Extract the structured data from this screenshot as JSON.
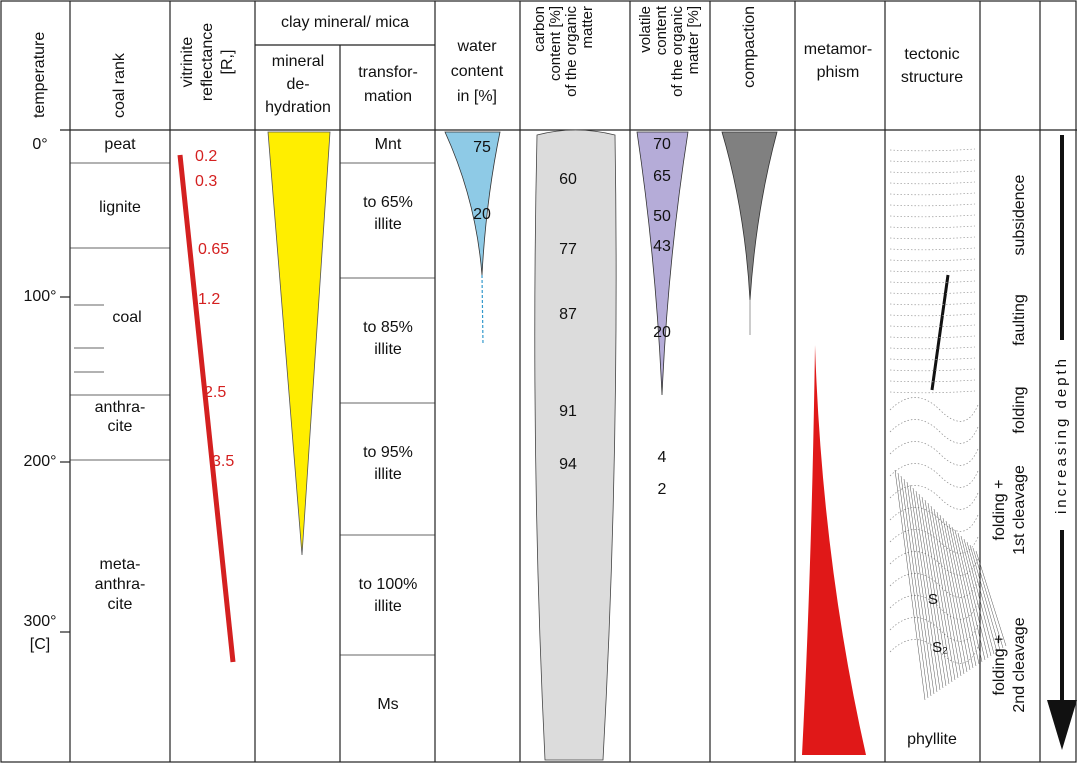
{
  "header": {
    "temperature": "temperature",
    "coal_rank": "coal rank",
    "vitrinite": [
      "vitrinite",
      "reflectance",
      "[R,]"
    ],
    "clay": "clay mineral/ mica",
    "dehydration": [
      "mineral",
      "de-",
      "hydration"
    ],
    "transformation": [
      "transfor-",
      "mation"
    ],
    "water": [
      "water",
      "content",
      "in [%]"
    ],
    "carbon": [
      "carbon",
      "content [%]",
      "of the organic",
      "matter"
    ],
    "volatile": [
      "volatile",
      "content",
      "of the organic",
      "matter [%]"
    ],
    "compaction": "compaction",
    "metamorphism": [
      "metamor-",
      "phism"
    ],
    "tectonic": [
      "tectonic",
      "structure"
    ]
  },
  "temperature": [
    "0°",
    "100°",
    "200°",
    "300°",
    "[C]"
  ],
  "coal_rank": [
    [
      "peat"
    ],
    [
      "lignite"
    ],
    [
      "coal"
    ],
    [
      "anthra-",
      "cite"
    ],
    [
      "meta-",
      "anthra-",
      "cite"
    ]
  ],
  "reflectance": [
    "0.2",
    "0.3",
    "0.65",
    "1.2",
    "2.5",
    "3.5"
  ],
  "transformation": [
    [
      "Mnt"
    ],
    [
      "to 65%",
      "illite"
    ],
    [
      "to 85%",
      "illite"
    ],
    [
      "to 95%",
      "illite"
    ],
    [
      "to 100%",
      "illite"
    ],
    [
      "Ms"
    ]
  ],
  "water": [
    "75",
    "20"
  ],
  "carbon": [
    "60",
    "77",
    "87",
    "91",
    "94"
  ],
  "volatile": [
    "70",
    "65",
    "50",
    "43",
    "20",
    "4",
    "2"
  ],
  "tectonic": [
    "S",
    "S₂",
    "phyllite"
  ],
  "processes": [
    [
      "subsidence"
    ],
    [
      "faulting"
    ],
    [
      "folding"
    ],
    [
      "folding +",
      "1st cleavage"
    ],
    [
      "folding +",
      "2nd cleavage"
    ]
  ],
  "depth": "increasing depth"
}
